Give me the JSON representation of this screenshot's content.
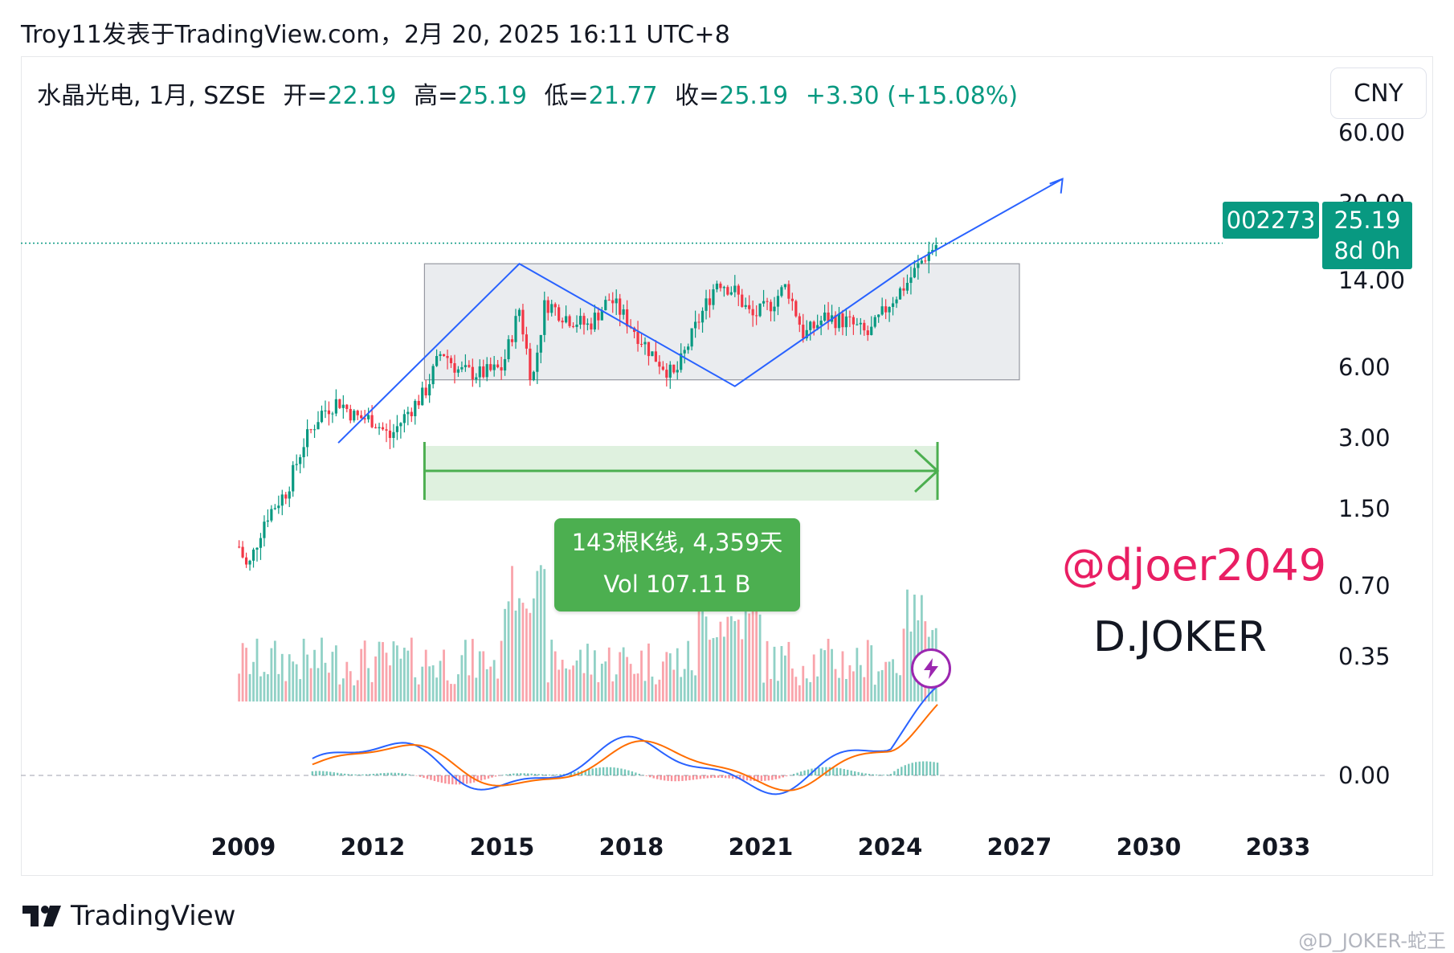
{
  "caption": "Troy11发表于TradingView.com，2月 20, 2025 16:11 UTC+8",
  "legend": {
    "symbol": "水晶光电, 1月, SZSE",
    "open_label": "开=",
    "open": "22.19",
    "high_label": "高=",
    "high": "25.19",
    "low_label": "低=",
    "low": "21.77",
    "close_label": "收=",
    "close": "25.19",
    "change": "+3.30 (+15.08%)"
  },
  "currency": "CNY",
  "symbol_tag": "002273",
  "last_price": "25.19",
  "countdown": "8d 0h",
  "measure": {
    "bars": "143根K线, 4,359天",
    "vol": "Vol 107.11 B"
  },
  "watermark": {
    "handle": "@djoer2049",
    "name": "D.JOKER"
  },
  "brand": "TradingView",
  "credit": "@D_JOKER-蛇王",
  "colors": {
    "up": "#089981",
    "down": "#f23645",
    "drawing": "#2962ff",
    "measure": "#4caf50",
    "macd": "#2962ff",
    "signal": "#ff6d00",
    "range_box": "#d1d4dc"
  },
  "chart_data": {
    "type": "line",
    "scale": "log",
    "y_ticks": [
      "60.00",
      "30.00",
      "14.00",
      "6.00",
      "3.00",
      "1.50",
      "0.70",
      "0.35",
      "0.00"
    ],
    "x_ticks": [
      "2009",
      "2012",
      "2015",
      "2018",
      "2021",
      "2024",
      "2027",
      "2030",
      "2033"
    ],
    "price_series": {
      "name": "",
      "x": [
        2008.9,
        2009.1,
        2009.5,
        2010.0,
        2010.4,
        2010.8,
        2011.2,
        2011.6,
        2012.0,
        2012.4,
        2012.8,
        2013.2,
        2013.6,
        2014.0,
        2014.5,
        2015.0,
        2015.4,
        2015.7,
        2016.0,
        2016.5,
        2017.0,
        2017.5,
        2018.0,
        2018.5,
        2019.0,
        2019.5,
        2020.0,
        2020.4,
        2020.8,
        2021.2,
        2021.6,
        2022.0,
        2022.5,
        2023.0,
        2023.5,
        2024.0,
        2024.4,
        2024.8,
        2025.1
      ],
      "y": [
        1.2,
        0.95,
        1.6,
        2.1,
        3.4,
        4.6,
        5.2,
        4.4,
        4.3,
        3.6,
        4.6,
        5.6,
        8.6,
        7.0,
        6.8,
        7.2,
        13.0,
        6.2,
        14.0,
        12.0,
        11.0,
        14.5,
        11.0,
        8.2,
        6.6,
        11.0,
        17.5,
        15.5,
        12.0,
        13.5,
        16.5,
        10.0,
        12.0,
        11.5,
        10.0,
        14.0,
        17.0,
        22.0,
        25.19
      ]
    },
    "range_box": {
      "x": [
        2013.2,
        2027.0
      ],
      "y": [
        6.4,
        20.5
      ]
    },
    "measure_range": {
      "x": [
        2013.2,
        2025.1
      ],
      "bars": 143,
      "days": 4359,
      "volume": "107.11 B"
    },
    "macd_zero": 0.0
  }
}
